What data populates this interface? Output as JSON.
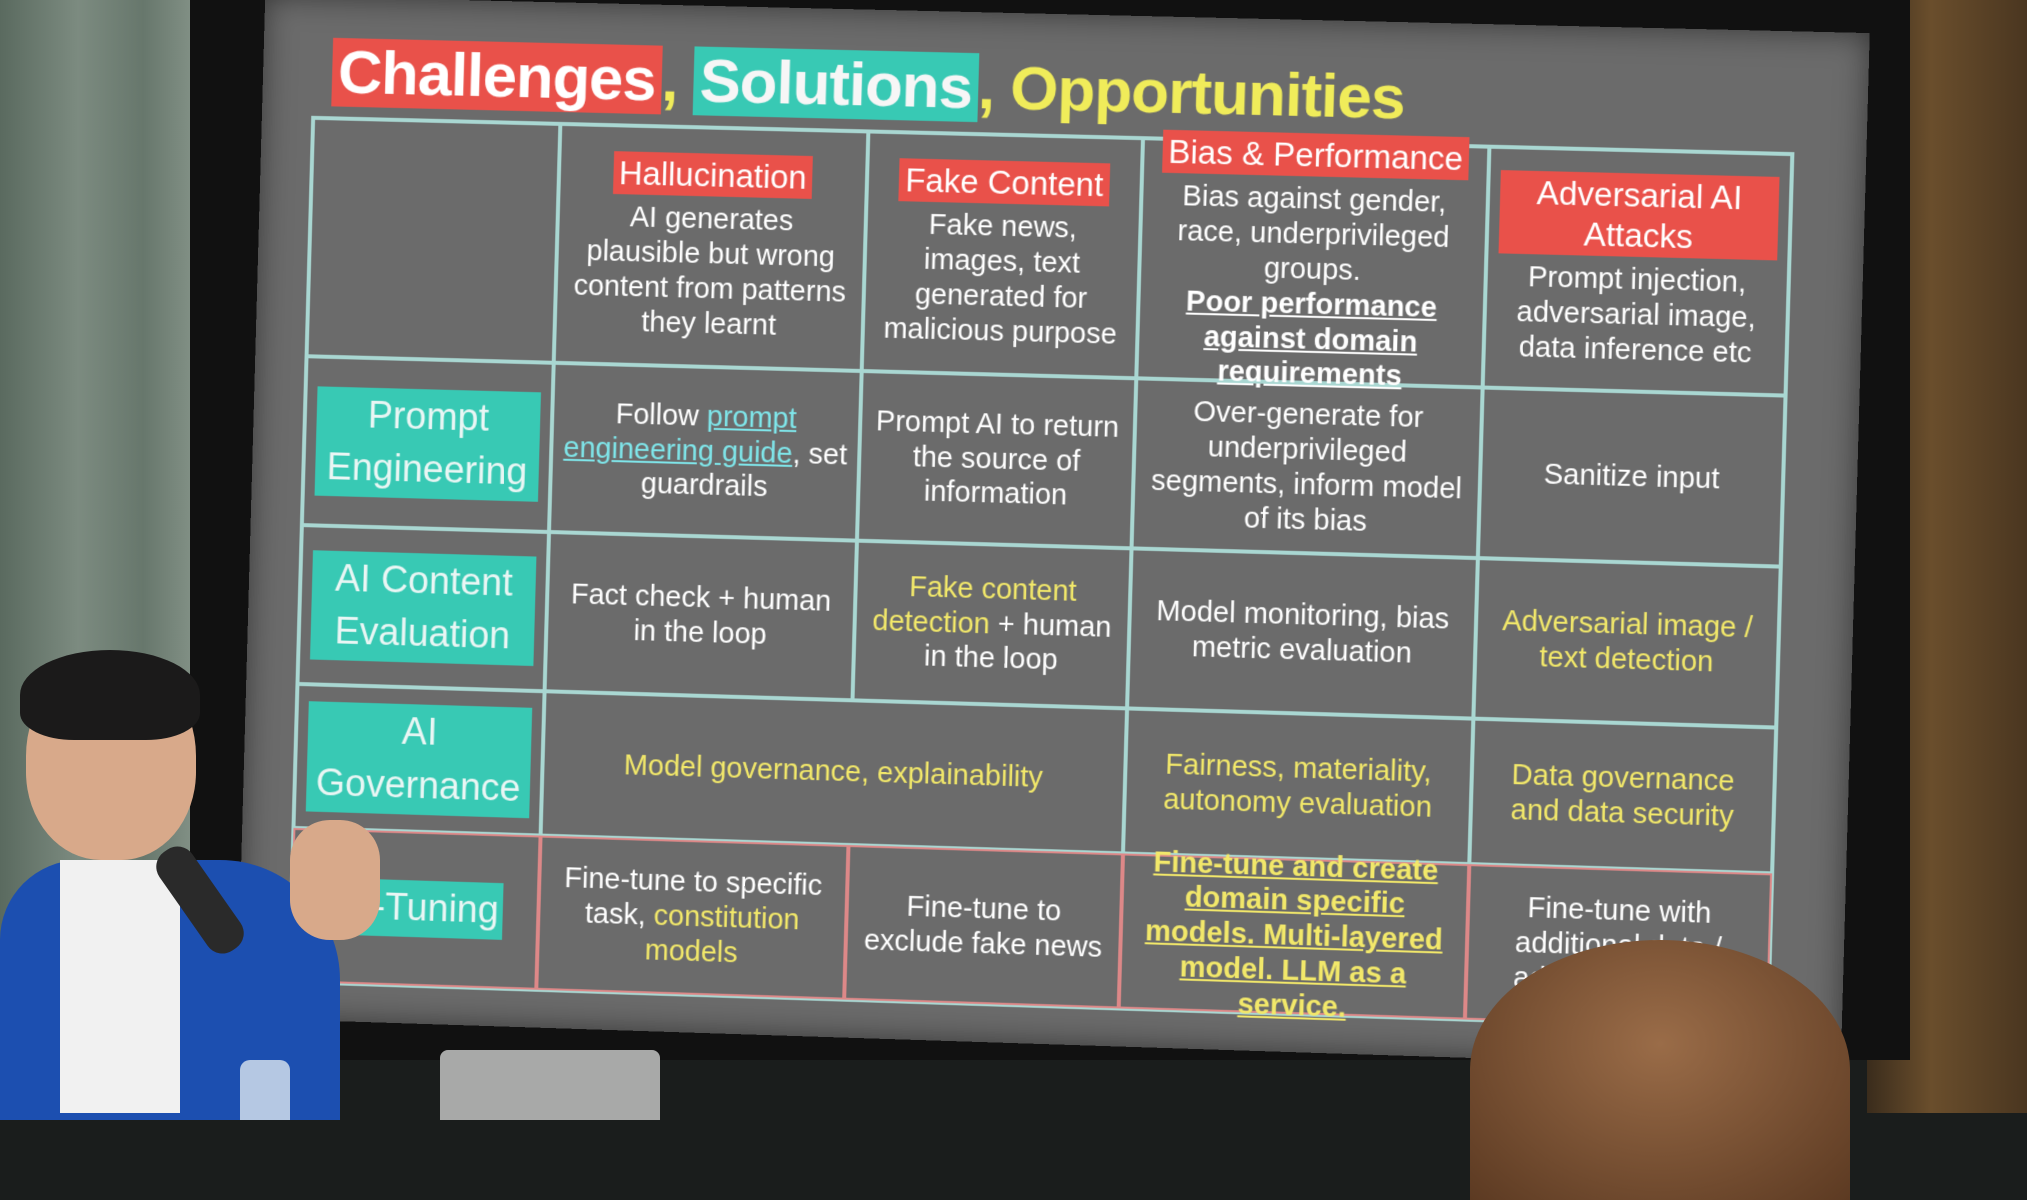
{
  "title": {
    "challenges": "Challenges",
    "sep1": ", ",
    "solutions": "Solutions",
    "sep2": ", ",
    "opportunities": "Opportunities"
  },
  "columns": [
    {
      "title": "Hallucination",
      "desc": "AI generates plausible but wrong content from patterns they learnt"
    },
    {
      "title": "Fake Content",
      "desc": "Fake news, images, text generated for malicious purpose"
    },
    {
      "title": "Bias & Performance",
      "desc": "Bias against gender, race, underprivileged groups.",
      "desc_underlined": "Poor performance against domain requirements"
    },
    {
      "title": "Adversarial AI Attacks",
      "desc": "Prompt injection, adversarial image, data inference etc"
    }
  ],
  "rows": {
    "prompt": {
      "label": "Prompt Engineering",
      "c1_pre": "Follow ",
      "c1_link": "prompt engineering guide",
      "c1_post": ", set guardrails",
      "c2": "Prompt AI to return the source of information",
      "c3": "Over-generate for underprivileged segments, inform model of its bias",
      "c4": "Sanitize input"
    },
    "evaluation": {
      "label": "AI Content Evaluation",
      "c1": "Fact check + human in the loop",
      "c2_yellow": "Fake content detection",
      "c2_rest": " + human in the loop",
      "c3": "Model monitoring, bias metric evaluation",
      "c4": "Adversarial image / text detection"
    },
    "governance": {
      "label": "AI Governance",
      "c12": "Model governance, explainability",
      "c3": "Fairness, materiality, autonomy evaluation",
      "c4": "Data governance and data security"
    },
    "finetune": {
      "label": "ne-Tuning",
      "c1_pre": "Fine-tune to specific task, ",
      "c1_yellow": "constitution models",
      "c2": "Fine-tune to exclude fake news",
      "c3": "Fine-tune and create domain specific models. Multi-layered model. LLM as a service.",
      "c4": "Fine-tune with additional data / adversarial data"
    }
  }
}
